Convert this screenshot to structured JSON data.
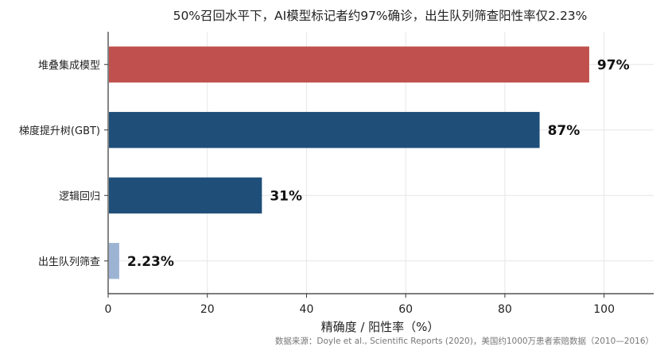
{
  "chart_data": {
    "type": "bar",
    "orientation": "horizontal",
    "title": "50%召回水平下，AI模型标记者约97%确诊，出生队列筛查阳性率仅2.23%",
    "xlabel": "精确度 / 阳性率（%）",
    "ylabel": "",
    "xlim": [
      0,
      110
    ],
    "xticks": [
      0,
      20,
      40,
      60,
      80,
      100
    ],
    "grid": true,
    "categories": [
      "堆叠集成模型",
      "梯度提升树(GBT)",
      "逻辑回归",
      "出生队列筛查"
    ],
    "values": [
      97,
      87,
      31,
      2.23
    ],
    "value_labels": [
      "97%",
      "87%",
      "31%",
      "2.23%"
    ],
    "bar_colors": [
      "#c0504d",
      "#1f4e79",
      "#1f4e79",
      "#9db3d4"
    ],
    "source": "数据来源：Doyle et al., Scientific Reports (2020)，美国约1000万患者索赔数据（2010—2016）"
  }
}
